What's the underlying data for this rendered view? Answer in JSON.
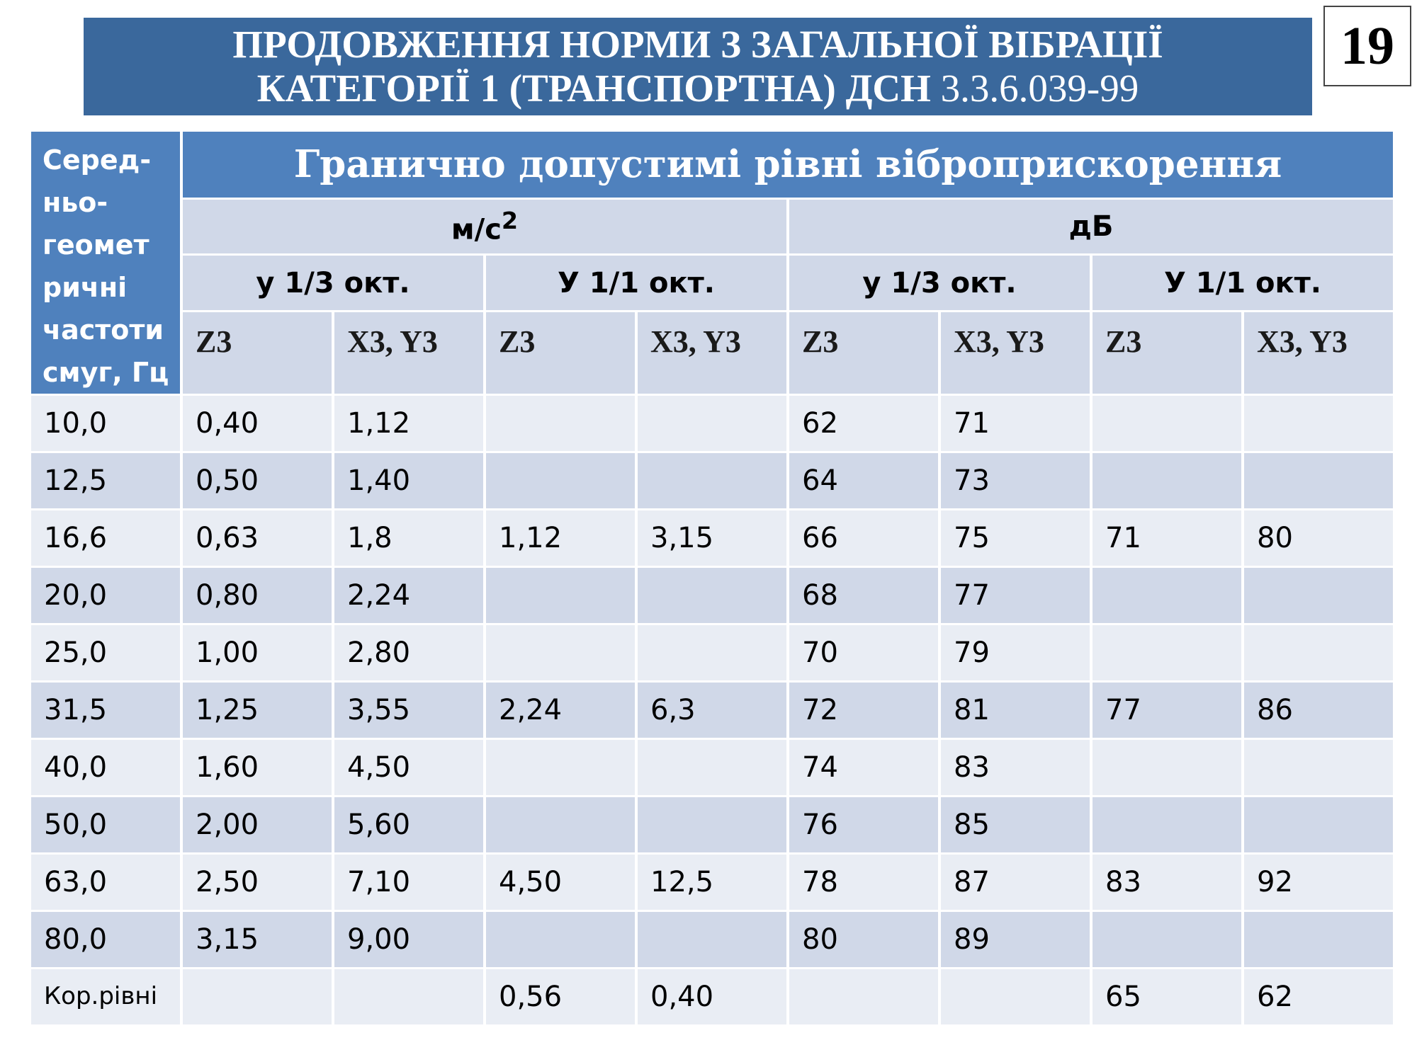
{
  "banner": {
    "line1": "ПРОДОВЖЕННЯ НОРМИ З ЗАГАЛЬНОЇ ВІБРАЦІЇ",
    "line2_bold": "КАТЕГОРІЇ 1 (ТРАНСПОРТНА) ДСН",
    "line2_rest": "3.3.6.039-99"
  },
  "page_number": "19",
  "table": {
    "freq_header_lines": [
      "Серед-",
      "ньо-",
      "геомет",
      "ричні",
      "частоти",
      "смуг, Гц"
    ],
    "main_header": "Гранично допустимі рівні віброприскорення",
    "unit_ms2_base": "м/с",
    "unit_ms2_sup": "2",
    "unit_db": "дБ",
    "oct_third_lower": "у 1/3 окт.",
    "oct_full_upper": "У 1/1 окт.",
    "axis_z": "Z3",
    "axis_xy": "X3, Y3",
    "rows": [
      [
        "10,0",
        "0,40",
        "1,12",
        "",
        "",
        "62",
        "71",
        "",
        ""
      ],
      [
        "12,5",
        "0,50",
        "1,40",
        "",
        "",
        "64",
        "73",
        "",
        ""
      ],
      [
        "16,6",
        "0,63",
        "1,8",
        "1,12",
        "3,15",
        "66",
        "75",
        "71",
        "80"
      ],
      [
        "20,0",
        "0,80",
        "2,24",
        "",
        "",
        "68",
        "77",
        "",
        ""
      ],
      [
        "25,0",
        "1,00",
        "2,80",
        "",
        "",
        "70",
        "79",
        "",
        ""
      ],
      [
        "31,5",
        "1,25",
        "3,55",
        "2,24",
        "6,3",
        "72",
        "81",
        "77",
        "86"
      ],
      [
        "40,0",
        "1,60",
        "4,50",
        "",
        "",
        "74",
        "83",
        "",
        ""
      ],
      [
        "50,0",
        "2,00",
        "5,60",
        "",
        "",
        "76",
        "85",
        "",
        ""
      ],
      [
        "63,0",
        "2,50",
        "7,10",
        "4,50",
        "12,5",
        "78",
        "87",
        "83",
        "92"
      ],
      [
        "80,0",
        "3,15",
        "9,00",
        "",
        "",
        "80",
        "89",
        "",
        ""
      ],
      [
        "Кор.рівні",
        "",
        "",
        "0,56",
        "0,40",
        "",
        "",
        "65",
        "62"
      ]
    ]
  }
}
